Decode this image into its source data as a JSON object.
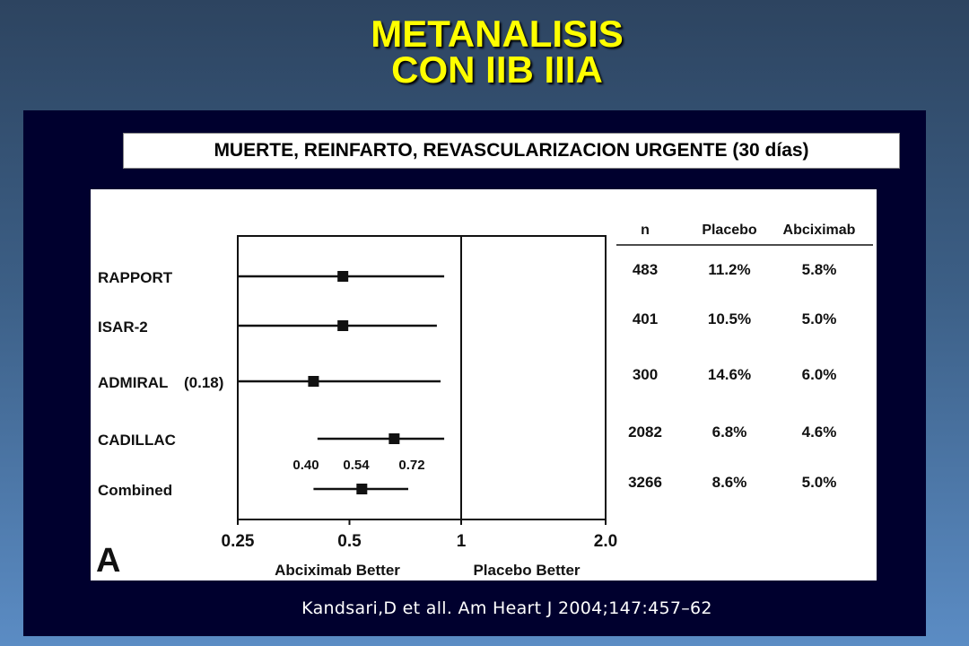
{
  "header": {
    "title_line1": "METANALISIS",
    "title_line2": "CON IIB IIIA"
  },
  "subtitle": "MUERTE, REINFARTO, REVASCULARIZACION URGENTE (30 días)",
  "citation": "Kandsari,D et all. Am Heart J 2004;147:457–62",
  "colors": {
    "title": "#ffff00",
    "panel": "#00002e",
    "figure_bg": "#ffffff",
    "ink": "#111111"
  },
  "chart_data": {
    "type": "forest",
    "panel_label": "A",
    "x_scale": "log",
    "xlim": [
      0.25,
      2.0
    ],
    "x_ticks": [
      "0.25",
      "0.5",
      "1",
      "2.0"
    ],
    "x_tick_values": [
      0.25,
      0.5,
      1,
      2.0
    ],
    "reference_line": 1,
    "xlabel_left": "Abciximab Better",
    "xlabel_right": "Placebo Better",
    "columns": [
      "n",
      "Placebo",
      "Abciximab"
    ],
    "studies": [
      {
        "name": "RAPPORT",
        "estimate": 0.48,
        "lower": 0.25,
        "upper": 0.9,
        "n": "483",
        "placebo": "11.2%",
        "abciximab": "5.8%",
        "note": ""
      },
      {
        "name": "ISAR-2",
        "estimate": 0.48,
        "lower": 0.25,
        "upper": 0.86,
        "n": "401",
        "placebo": "10.5%",
        "abciximab": "5.0%",
        "note": ""
      },
      {
        "name": "ADMIRAL",
        "estimate": 0.4,
        "lower": 0.25,
        "upper": 0.88,
        "n": "300",
        "placebo": "14.6%",
        "abciximab": "6.0%",
        "note": "(0.18)"
      },
      {
        "name": "CADILLAC",
        "estimate": 0.66,
        "lower": 0.41,
        "upper": 0.9,
        "n": "2082",
        "placebo": "6.8%",
        "abciximab": "4.6%",
        "note": ""
      },
      {
        "name": "Combined",
        "estimate": 0.54,
        "lower": 0.4,
        "upper": 0.72,
        "n": "3266",
        "placebo": "8.6%",
        "abciximab": "5.0%",
        "note": "",
        "ci_labels": [
          "0.40",
          "0.54",
          "0.72"
        ]
      }
    ]
  }
}
